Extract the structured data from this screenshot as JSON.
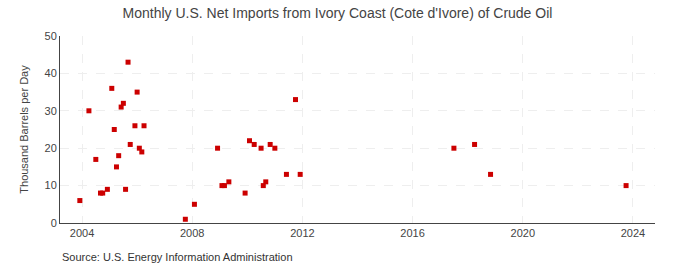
{
  "chart_data": {
    "type": "scatter",
    "title": "Monthly U.S. Net Imports from Ivory Coast (Cote d'Ivore) of Crude Oil",
    "ylabel": "Thousand Barrels per Day",
    "annotations": [
      "Source: U.S. Energy Information Administration"
    ],
    "color": "#CC0000",
    "marker": "square",
    "grid": true,
    "xlim": [
      2003.2,
      2024.8
    ],
    "xticks": [
      2004,
      2008,
      2012,
      2016,
      2020,
      2024
    ],
    "ylim": [
      0,
      50
    ],
    "yticks": [
      0,
      10,
      20,
      30,
      40,
      50
    ],
    "x": [
      2003.92,
      2004.25,
      2004.5,
      2004.67,
      2004.75,
      2004.92,
      2005.08,
      2005.17,
      2005.25,
      2005.33,
      2005.42,
      2005.5,
      2005.58,
      2005.67,
      2005.75,
      2005.92,
      2006.0,
      2006.08,
      2006.17,
      2006.25,
      2007.75,
      2008.08,
      2008.92,
      2009.08,
      2009.17,
      2009.33,
      2009.92,
      2010.08,
      2010.25,
      2010.5,
      2010.58,
      2010.67,
      2010.83,
      2011.0,
      2011.42,
      2011.75,
      2011.92,
      2017.5,
      2018.25,
      2018.83,
      2023.75
    ],
    "values": [
      6,
      30,
      17,
      8,
      8,
      9,
      36,
      25,
      15,
      18,
      31,
      32,
      9,
      43,
      21,
      26,
      35,
      20,
      19,
      26,
      1,
      5,
      20,
      10,
      10,
      11,
      8,
      22,
      21,
      20,
      10,
      11,
      21,
      20,
      13,
      33,
      13,
      20,
      21,
      13,
      10
    ]
  }
}
